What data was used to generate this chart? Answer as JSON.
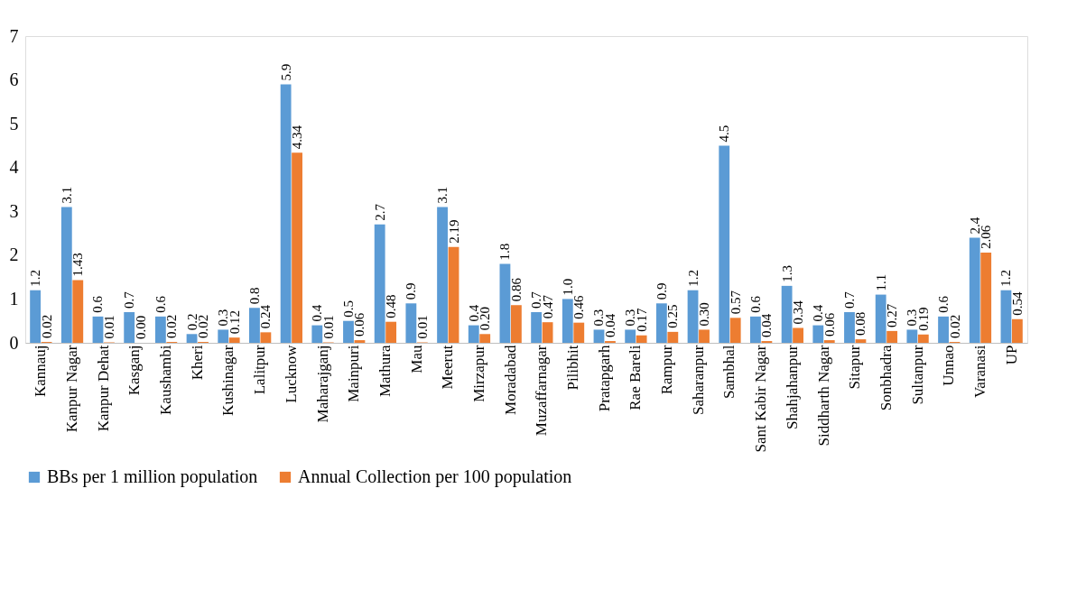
{
  "chart_data": {
    "type": "bar",
    "categories": [
      "Kannauj",
      "Kanpur Nagar",
      "Kanpur Dehat",
      "Kasganj",
      "Kaushambi",
      "Kheri",
      "Kushinagar",
      "Lalitpur",
      "Lucknow",
      "Maharajganj",
      "Mainpuri",
      "Mathura",
      "Mau",
      "Meerut",
      "Mirzapur",
      "Moradabad",
      "Muzaffarnagar",
      "Pilibhit",
      "Pratapgarh",
      "Rae Bareli",
      "Rampur",
      "Saharanpur",
      "Sambhal",
      "Sant Kabir Nagar",
      "Shahjahanpur",
      "Siddharth Nagar",
      "Sitapur",
      "Sonbhadra",
      "Sultanpur",
      "Unnao",
      "Varanasi",
      "UP"
    ],
    "series": [
      {
        "name": "BBs per 1 million population",
        "color": "#5b9bd5",
        "values": [
          1.2,
          3.1,
          0.6,
          0.7,
          0.6,
          0.2,
          0.3,
          0.8,
          5.9,
          0.4,
          0.5,
          2.7,
          0.9,
          3.1,
          0.4,
          1.8,
          0.7,
          1.0,
          0.3,
          0.3,
          0.9,
          1.2,
          4.5,
          0.6,
          1.3,
          0.4,
          0.7,
          1.1,
          0.3,
          0.6,
          2.4,
          1.2
        ],
        "value_labels": [
          "1.2",
          "3.1",
          "0.6",
          "0.7",
          "0.6",
          "0.2",
          "0.3",
          "0.8",
          "5.9",
          "0.4",
          "0.5",
          "2.7",
          "0.9",
          "3.1",
          "0.4",
          "1.8",
          "0.7",
          "1.0",
          "0.3",
          "0.3",
          "0.9",
          "1.2",
          "4.5",
          "0.6",
          "1.3",
          "0.4",
          "0.7",
          "1.1",
          "0.3",
          "0.6",
          "2.4",
          "1.2"
        ]
      },
      {
        "name": "Annual Collection per 100 population",
        "color": "#ed7d31",
        "values": [
          0.02,
          1.43,
          0.01,
          0.0,
          0.02,
          0.02,
          0.12,
          0.24,
          4.34,
          0.01,
          0.06,
          0.48,
          0.01,
          2.19,
          0.2,
          0.86,
          0.47,
          0.46,
          0.04,
          0.17,
          0.25,
          0.3,
          0.57,
          0.04,
          0.34,
          0.06,
          0.08,
          0.27,
          0.19,
          0.02,
          2.06,
          0.54
        ],
        "value_labels": [
          "0.02",
          "1.43",
          "0.01",
          "0.00",
          "0.02",
          "0.02",
          "0.12",
          "0.24",
          "4.34",
          "0.01",
          "0.06",
          "0.48",
          "0.01",
          "2.19",
          "0.20",
          "0.86",
          "0.47",
          "0.46",
          "0.04",
          "0.17",
          "0.25",
          "0.30",
          "0.57",
          "0.04",
          "0.34",
          "0.06",
          "0.08",
          "0.27",
          "0.19",
          "0.02",
          "2.06",
          "0.54"
        ]
      }
    ],
    "ylim": [
      0,
      7
    ],
    "yticks": [
      0,
      1,
      2,
      3,
      4,
      5,
      6,
      7
    ],
    "grid": false,
    "legend": "bottom"
  }
}
